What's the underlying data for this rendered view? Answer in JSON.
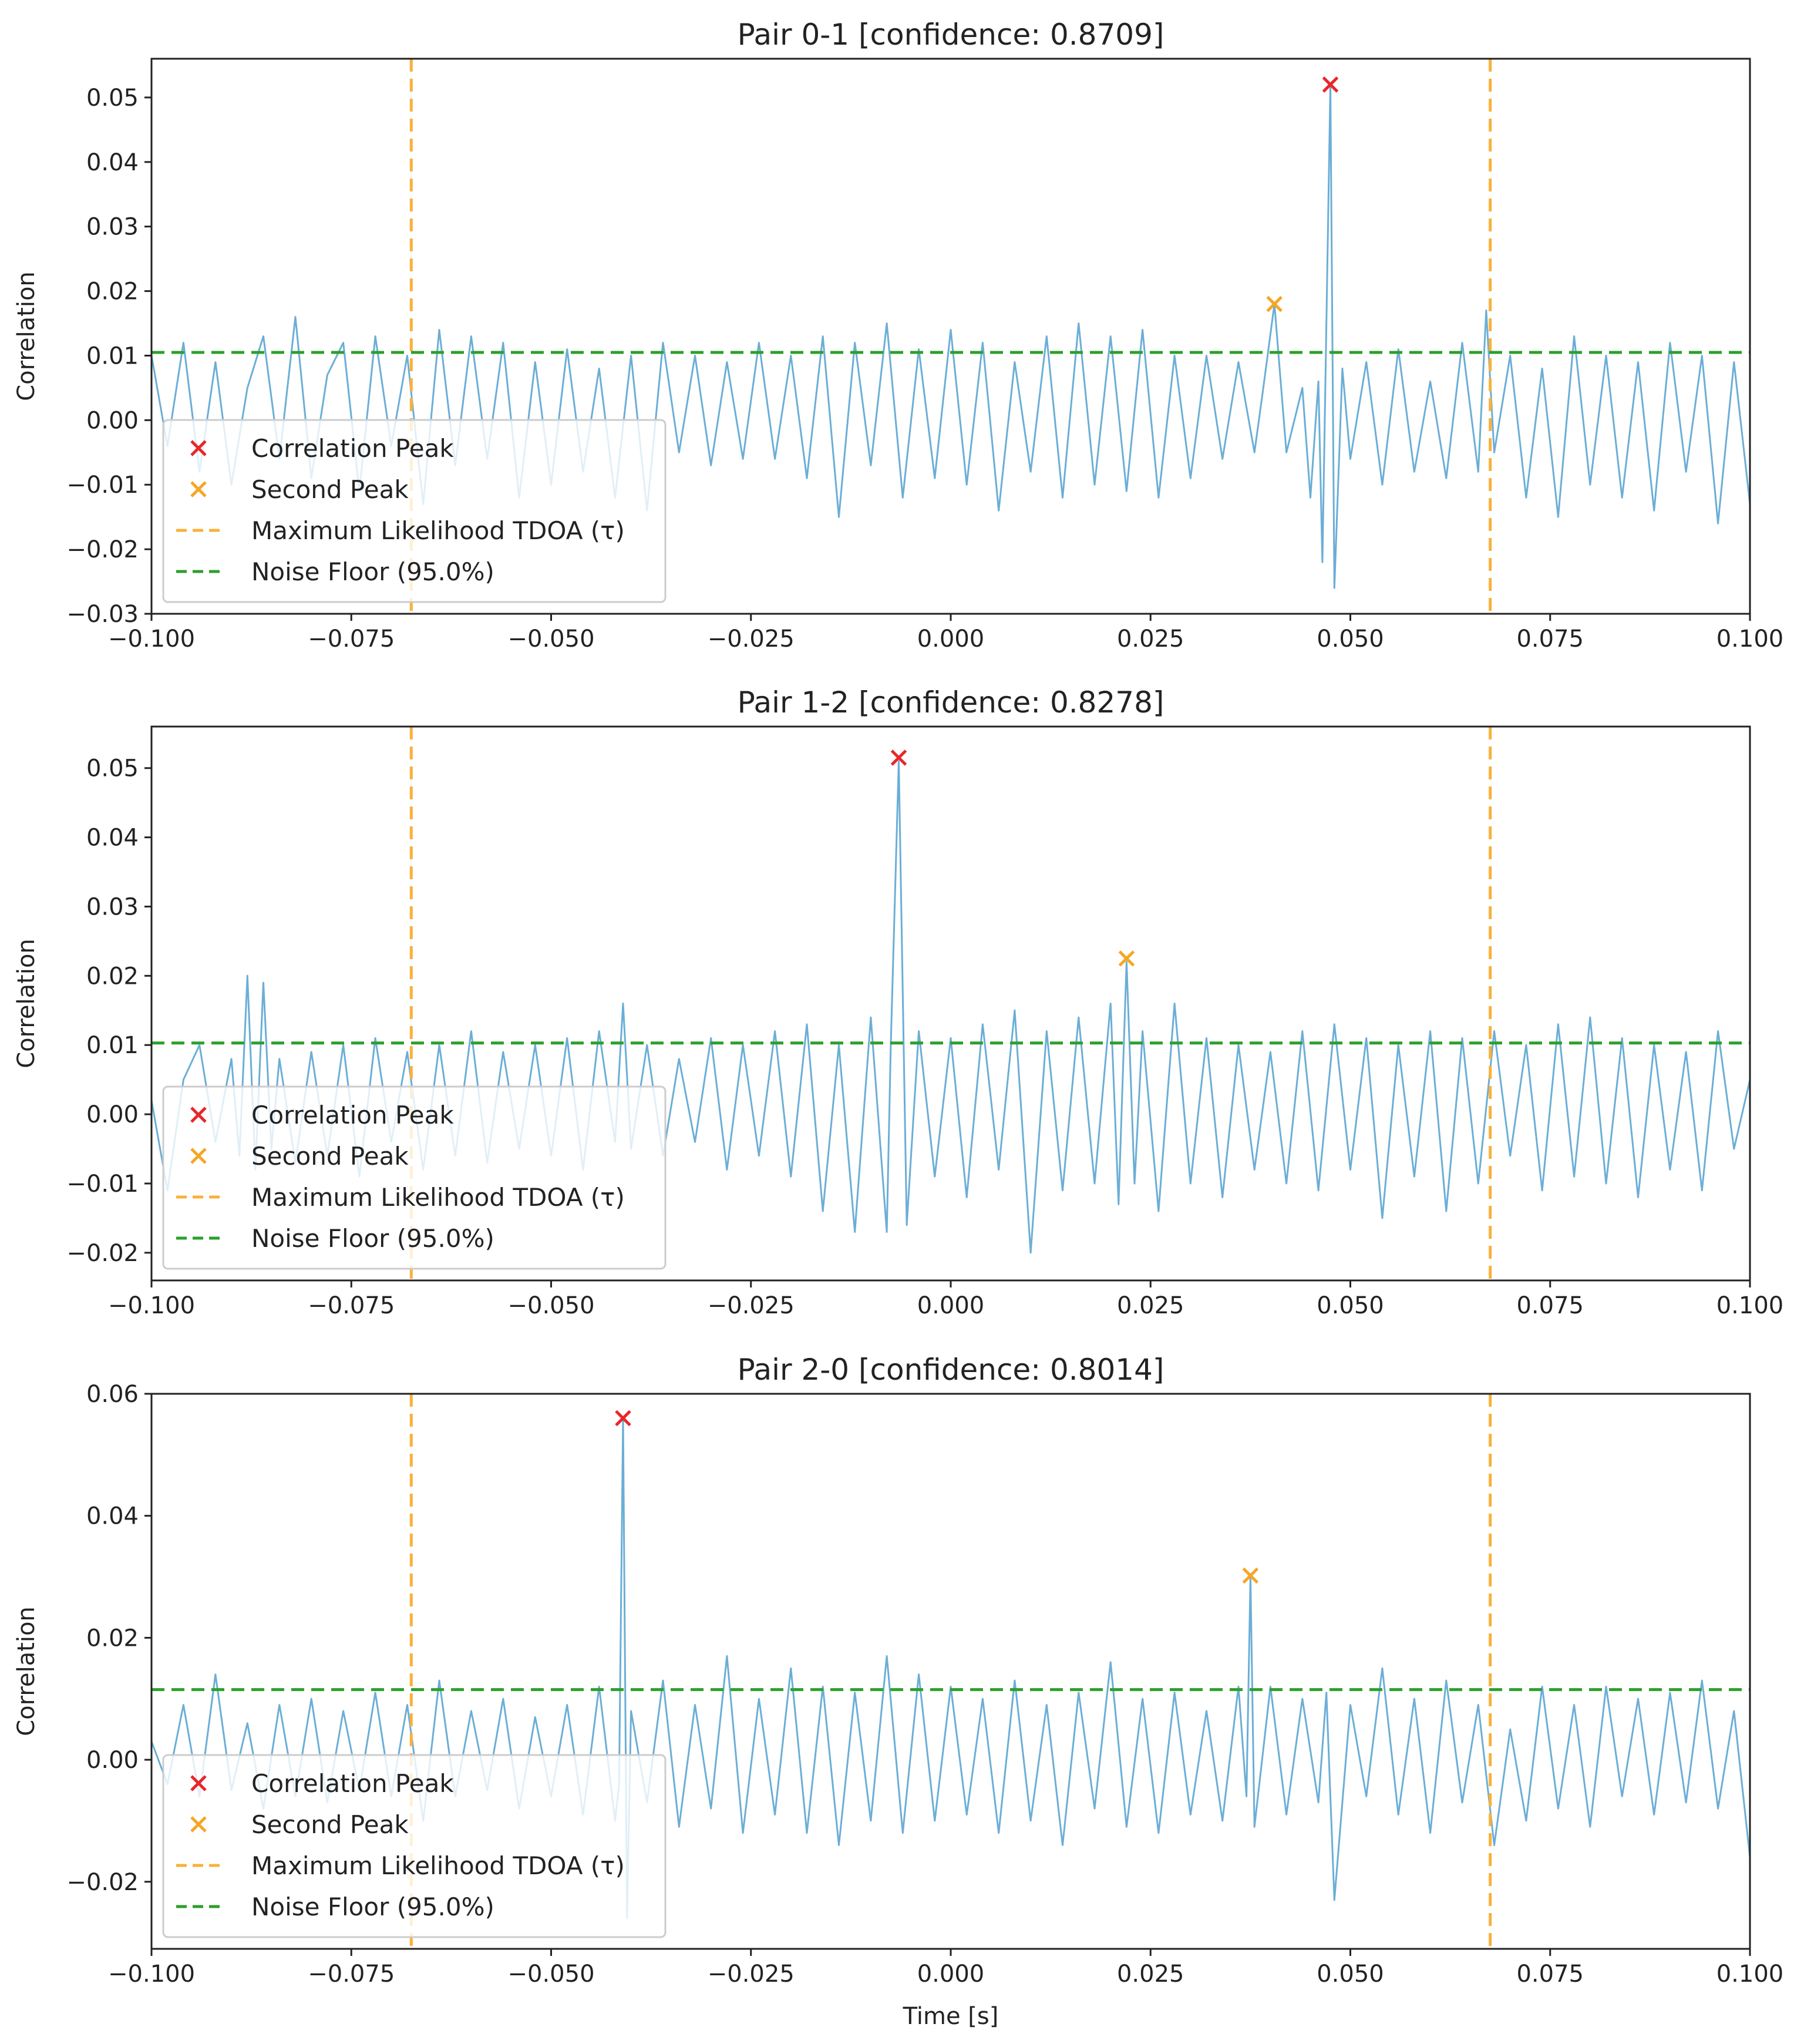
{
  "chart_data": [
    {
      "type": "line",
      "title": "Pair 0-1 [confidence: 0.8709]",
      "xlabel": "",
      "ylabel": "Correlation",
      "xlim": [
        -0.1,
        0.1
      ],
      "ylim": [
        -0.03,
        0.056
      ],
      "xticks": [
        -0.1,
        -0.075,
        -0.05,
        -0.025,
        0.0,
        0.025,
        0.05,
        0.075,
        0.1
      ],
      "xtick_labels": [
        "−0.100",
        "−0.075",
        "−0.050",
        "−0.025",
        "0.000",
        "0.025",
        "0.050",
        "0.075",
        "0.100"
      ],
      "yticks": [
        -0.03,
        -0.02,
        -0.01,
        0.0,
        0.01,
        0.02,
        0.03,
        0.04,
        0.05
      ],
      "ytick_labels": [
        "−0.03",
        "−0.02",
        "−0.01",
        "0.00",
        "0.01",
        "0.02",
        "0.03",
        "0.04",
        "0.05"
      ],
      "series": [
        {
          "name": "Correlation",
          "color": "#6baed6",
          "x": [
            -0.1,
            -0.098,
            -0.096,
            -0.094,
            -0.092,
            -0.09,
            -0.088,
            -0.086,
            -0.084,
            -0.082,
            -0.08,
            -0.078,
            -0.076,
            -0.074,
            -0.072,
            -0.07,
            -0.068,
            -0.066,
            -0.064,
            -0.062,
            -0.06,
            -0.058,
            -0.056,
            -0.054,
            -0.052,
            -0.05,
            -0.048,
            -0.046,
            -0.044,
            -0.042,
            -0.04,
            -0.038,
            -0.036,
            -0.034,
            -0.032,
            -0.03,
            -0.028,
            -0.026,
            -0.024,
            -0.022,
            -0.02,
            -0.018,
            -0.016,
            -0.014,
            -0.012,
            -0.01,
            -0.008,
            -0.006,
            -0.004,
            -0.002,
            0.0,
            0.002,
            0.004,
            0.006,
            0.008,
            0.01,
            0.012,
            0.014,
            0.016,
            0.018,
            0.02,
            0.022,
            0.024,
            0.026,
            0.028,
            0.03,
            0.032,
            0.034,
            0.036,
            0.038,
            0.039,
            0.0405,
            0.042,
            0.044,
            0.045,
            0.046,
            0.0465,
            0.0475,
            0.048,
            0.049,
            0.05,
            0.052,
            0.054,
            0.056,
            0.058,
            0.06,
            0.062,
            0.064,
            0.066,
            0.067,
            0.068,
            0.07,
            0.072,
            0.074,
            0.076,
            0.078,
            0.08,
            0.082,
            0.084,
            0.086,
            0.088,
            0.09,
            0.092,
            0.094,
            0.096,
            0.098,
            0.1
          ],
          "y": [
            0.01,
            -0.004,
            0.012,
            -0.008,
            0.009,
            -0.01,
            0.005,
            0.013,
            -0.006,
            0.016,
            -0.009,
            0.007,
            0.012,
            -0.011,
            0.013,
            -0.004,
            0.01,
            -0.013,
            0.014,
            -0.007,
            0.013,
            -0.006,
            0.012,
            -0.012,
            0.009,
            -0.01,
            0.011,
            -0.008,
            0.008,
            -0.012,
            0.01,
            -0.014,
            0.012,
            -0.005,
            0.01,
            -0.007,
            0.009,
            -0.006,
            0.012,
            -0.006,
            0.01,
            -0.009,
            0.013,
            -0.015,
            0.012,
            -0.007,
            0.015,
            -0.012,
            0.011,
            -0.009,
            0.014,
            -0.01,
            0.012,
            -0.014,
            0.009,
            -0.008,
            0.013,
            -0.012,
            0.015,
            -0.01,
            0.013,
            -0.011,
            0.014,
            -0.012,
            0.01,
            -0.009,
            0.01,
            -0.006,
            0.009,
            -0.005,
            0.004,
            0.018,
            -0.005,
            0.005,
            -0.012,
            0.006,
            -0.022,
            0.052,
            -0.026,
            0.008,
            -0.006,
            0.009,
            -0.01,
            0.011,
            -0.008,
            0.006,
            -0.009,
            0.012,
            -0.008,
            0.017,
            -0.005,
            0.01,
            -0.012,
            0.008,
            -0.015,
            0.013,
            -0.01,
            0.01,
            -0.012,
            0.009,
            -0.014,
            0.012,
            -0.008,
            0.01,
            -0.016,
            0.009,
            -0.013
          ]
        }
      ],
      "peak": {
        "name": "Correlation Peak",
        "x": 0.0475,
        "y": 0.052,
        "color": "#e8262a"
      },
      "second_peak": {
        "name": "Second Peak",
        "x": 0.0405,
        "y": 0.018,
        "color": "#f5a623"
      },
      "tdoa_bounds": {
        "name": "Maximum Likelihood TDOA (τ)",
        "values": [
          -0.0675,
          0.0675
        ],
        "color": "#f9b13b"
      },
      "noise_floor": {
        "name": "Noise Floor (95.0%)",
        "value": 0.0105,
        "color": "#2ca02c"
      },
      "legend": {
        "placement": "bottom-left"
      }
    },
    {
      "type": "line",
      "title": "Pair 1-2 [confidence: 0.8278]",
      "xlabel": "",
      "ylabel": "Correlation",
      "xlim": [
        -0.1,
        0.1
      ],
      "ylim": [
        -0.024,
        0.056
      ],
      "xticks": [
        -0.1,
        -0.075,
        -0.05,
        -0.025,
        0.0,
        0.025,
        0.05,
        0.075,
        0.1
      ],
      "xtick_labels": [
        "−0.100",
        "−0.075",
        "−0.050",
        "−0.025",
        "0.000",
        "0.025",
        "0.050",
        "0.075",
        "0.100"
      ],
      "yticks": [
        -0.02,
        -0.01,
        0.0,
        0.01,
        0.02,
        0.03,
        0.04,
        0.05
      ],
      "ytick_labels": [
        "−0.02",
        "−0.01",
        "0.00",
        "0.01",
        "0.02",
        "0.03",
        "0.04",
        "0.05"
      ],
      "series": [
        {
          "name": "Correlation",
          "color": "#6baed6",
          "x": [
            -0.1,
            -0.098,
            -0.096,
            -0.094,
            -0.092,
            -0.09,
            -0.089,
            -0.088,
            -0.087,
            -0.086,
            -0.085,
            -0.084,
            -0.082,
            -0.08,
            -0.078,
            -0.076,
            -0.074,
            -0.072,
            -0.07,
            -0.068,
            -0.066,
            -0.064,
            -0.062,
            -0.06,
            -0.058,
            -0.056,
            -0.054,
            -0.052,
            -0.05,
            -0.048,
            -0.046,
            -0.044,
            -0.042,
            -0.041,
            -0.04,
            -0.038,
            -0.036,
            -0.034,
            -0.032,
            -0.03,
            -0.028,
            -0.026,
            -0.024,
            -0.022,
            -0.02,
            -0.018,
            -0.016,
            -0.014,
            -0.012,
            -0.01,
            -0.008,
            -0.0075,
            -0.0065,
            -0.0055,
            -0.004,
            -0.002,
            0.0,
            0.002,
            0.004,
            0.006,
            0.008,
            0.01,
            0.012,
            0.014,
            0.016,
            0.018,
            0.02,
            0.021,
            0.022,
            0.023,
            0.024,
            0.026,
            0.028,
            0.03,
            0.032,
            0.034,
            0.036,
            0.038,
            0.04,
            0.042,
            0.044,
            0.046,
            0.048,
            0.05,
            0.052,
            0.054,
            0.056,
            0.058,
            0.06,
            0.062,
            0.064,
            0.066,
            0.068,
            0.07,
            0.072,
            0.074,
            0.076,
            0.078,
            0.08,
            0.082,
            0.084,
            0.086,
            0.088,
            0.09,
            0.092,
            0.094,
            0.096,
            0.098,
            0.1
          ],
          "y": [
            0.002,
            -0.011,
            0.005,
            0.01,
            -0.004,
            0.008,
            -0.006,
            0.02,
            -0.008,
            0.019,
            -0.005,
            0.008,
            -0.007,
            0.009,
            -0.006,
            0.01,
            -0.009,
            0.011,
            -0.004,
            0.009,
            -0.008,
            0.01,
            -0.006,
            0.012,
            -0.007,
            0.009,
            -0.005,
            0.01,
            -0.006,
            0.011,
            -0.008,
            0.012,
            -0.004,
            0.016,
            -0.005,
            0.01,
            -0.006,
            0.008,
            -0.004,
            0.011,
            -0.008,
            0.01,
            -0.006,
            0.012,
            -0.009,
            0.013,
            -0.014,
            0.01,
            -0.017,
            0.014,
            -0.017,
            0.01,
            0.051,
            -0.016,
            0.012,
            -0.009,
            0.011,
            -0.012,
            0.013,
            -0.008,
            0.015,
            -0.02,
            0.012,
            -0.011,
            0.014,
            -0.01,
            0.016,
            -0.013,
            0.022,
            -0.01,
            0.012,
            -0.014,
            0.016,
            -0.01,
            0.011,
            -0.012,
            0.01,
            -0.008,
            0.009,
            -0.01,
            0.012,
            -0.011,
            0.013,
            -0.008,
            0.011,
            -0.015,
            0.01,
            -0.009,
            0.012,
            -0.014,
            0.011,
            -0.01,
            0.012,
            -0.006,
            0.01,
            -0.011,
            0.013,
            -0.009,
            0.014,
            -0.01,
            0.011,
            -0.012,
            0.01,
            -0.008,
            0.009,
            -0.011,
            0.012,
            -0.005,
            0.005
          ]
        }
      ],
      "peak": {
        "name": "Correlation Peak",
        "x": -0.0065,
        "y": 0.0515,
        "color": "#e8262a"
      },
      "second_peak": {
        "name": "Second Peak",
        "x": 0.022,
        "y": 0.0225,
        "color": "#f5a623"
      },
      "tdoa_bounds": {
        "name": "Maximum Likelihood TDOA (τ)",
        "values": [
          -0.0675,
          0.0675
        ],
        "color": "#f9b13b"
      },
      "noise_floor": {
        "name": "Noise Floor (95.0%)",
        "value": 0.0103,
        "color": "#2ca02c"
      },
      "legend": {
        "placement": "bottom-left"
      }
    },
    {
      "type": "line",
      "title": "Pair 2-0 [confidence: 0.8014]",
      "xlabel": "Time [s]",
      "ylabel": "Correlation",
      "xlim": [
        -0.1,
        0.1
      ],
      "ylim": [
        -0.031,
        0.06
      ],
      "xticks": [
        -0.1,
        -0.075,
        -0.05,
        -0.025,
        0.0,
        0.025,
        0.05,
        0.075,
        0.1
      ],
      "xtick_labels": [
        "−0.100",
        "−0.075",
        "−0.050",
        "−0.025",
        "0.000",
        "0.025",
        "0.050",
        "0.075",
        "0.100"
      ],
      "yticks": [
        -0.02,
        0.0,
        0.02,
        0.04,
        0.06
      ],
      "ytick_labels": [
        "−0.02",
        "0.00",
        "0.02",
        "0.04",
        "0.06"
      ],
      "series": [
        {
          "name": "Correlation",
          "color": "#6baed6",
          "x": [
            -0.1,
            -0.098,
            -0.096,
            -0.094,
            -0.092,
            -0.09,
            -0.088,
            -0.086,
            -0.084,
            -0.082,
            -0.08,
            -0.078,
            -0.076,
            -0.074,
            -0.072,
            -0.07,
            -0.068,
            -0.066,
            -0.064,
            -0.062,
            -0.06,
            -0.058,
            -0.056,
            -0.054,
            -0.052,
            -0.05,
            -0.048,
            -0.046,
            -0.044,
            -0.042,
            -0.0415,
            -0.041,
            -0.0405,
            -0.04,
            -0.038,
            -0.036,
            -0.034,
            -0.032,
            -0.03,
            -0.028,
            -0.026,
            -0.024,
            -0.022,
            -0.02,
            -0.018,
            -0.016,
            -0.014,
            -0.012,
            -0.01,
            -0.008,
            -0.006,
            -0.004,
            -0.002,
            0.0,
            0.002,
            0.004,
            0.006,
            0.008,
            0.01,
            0.012,
            0.014,
            0.016,
            0.018,
            0.02,
            0.022,
            0.024,
            0.026,
            0.028,
            0.03,
            0.032,
            0.034,
            0.036,
            0.037,
            0.0375,
            0.038,
            0.04,
            0.042,
            0.044,
            0.046,
            0.047,
            0.048,
            0.05,
            0.052,
            0.054,
            0.056,
            0.058,
            0.06,
            0.062,
            0.064,
            0.066,
            0.068,
            0.07,
            0.072,
            0.074,
            0.076,
            0.078,
            0.08,
            0.082,
            0.084,
            0.086,
            0.088,
            0.09,
            0.092,
            0.094,
            0.096,
            0.098,
            0.1
          ],
          "y": [
            0.003,
            -0.004,
            0.009,
            -0.006,
            0.014,
            -0.005,
            0.006,
            -0.008,
            0.009,
            -0.006,
            0.01,
            -0.007,
            0.008,
            -0.005,
            0.011,
            -0.006,
            0.009,
            -0.01,
            0.013,
            -0.006,
            0.008,
            -0.005,
            0.01,
            -0.008,
            0.007,
            -0.006,
            0.009,
            -0.009,
            0.012,
            -0.01,
            -0.004,
            0.056,
            -0.026,
            0.008,
            -0.007,
            0.013,
            -0.011,
            0.009,
            -0.008,
            0.017,
            -0.012,
            0.01,
            -0.009,
            0.015,
            -0.012,
            0.012,
            -0.014,
            0.011,
            -0.01,
            0.017,
            -0.012,
            0.014,
            -0.01,
            0.012,
            -0.009,
            0.01,
            -0.012,
            0.013,
            -0.01,
            0.009,
            -0.014,
            0.011,
            -0.008,
            0.016,
            -0.011,
            0.01,
            -0.012,
            0.011,
            -0.009,
            0.008,
            -0.01,
            0.012,
            -0.006,
            0.03,
            -0.011,
            0.012,
            -0.009,
            0.01,
            -0.007,
            0.011,
            -0.023,
            0.009,
            -0.006,
            0.015,
            -0.009,
            0.01,
            -0.012,
            0.013,
            -0.007,
            0.009,
            -0.014,
            0.005,
            -0.01,
            0.012,
            -0.008,
            0.009,
            -0.011,
            0.012,
            -0.006,
            0.01,
            -0.009,
            0.011,
            -0.007,
            0.013,
            -0.008,
            0.008,
            -0.016
          ]
        }
      ],
      "peak": {
        "name": "Correlation Peak",
        "x": -0.041,
        "y": 0.056,
        "color": "#e8262a"
      },
      "second_peak": {
        "name": "Second Peak",
        "x": 0.0375,
        "y": 0.0302,
        "color": "#f5a623"
      },
      "tdoa_bounds": {
        "name": "Maximum Likelihood TDOA (τ)",
        "values": [
          -0.0675,
          0.0675
        ],
        "color": "#f9b13b"
      },
      "noise_floor": {
        "name": "Noise Floor (95.0%)",
        "value": 0.0115,
        "color": "#2ca02c"
      },
      "legend": {
        "placement": "bottom-left"
      }
    }
  ]
}
